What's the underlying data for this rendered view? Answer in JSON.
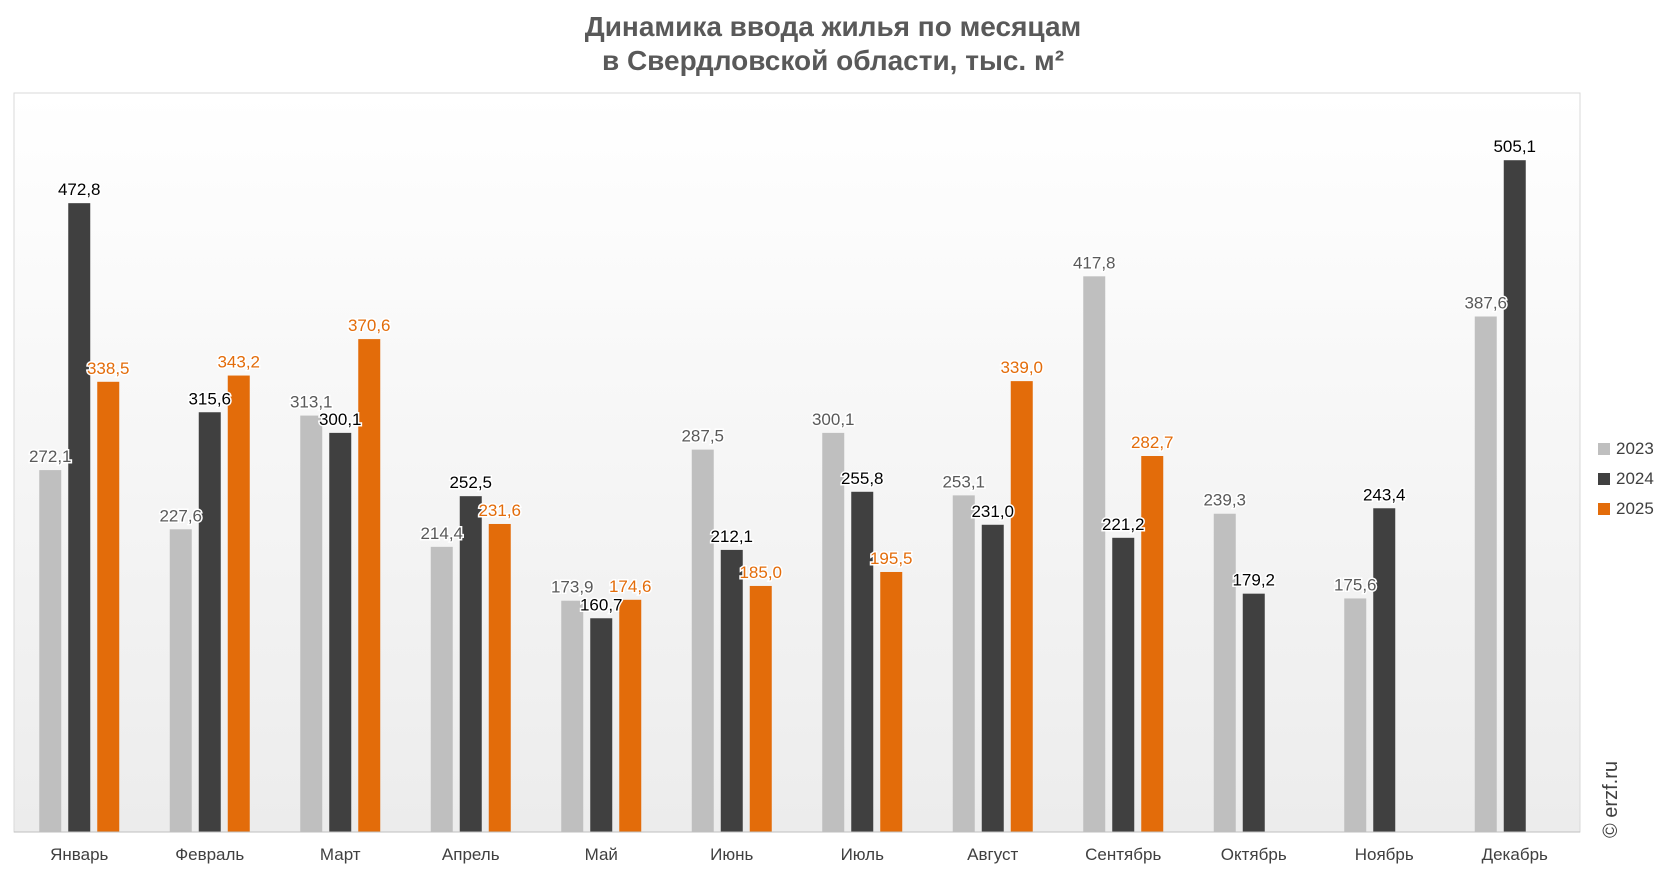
{
  "title": {
    "line1": "Динамика ввода жилья по месяцам",
    "line2": "в Свердловской области, тыс. м²"
  },
  "copyright": "© erzf.ru",
  "chart_data": {
    "type": "bar",
    "title": "Динамика ввода жилья по месяцам в Свердловской области, тыс. м²",
    "categories": [
      "Январь",
      "Февраль",
      "Март",
      "Апрель",
      "Май",
      "Июнь",
      "Июль",
      "Август",
      "Сентябрь",
      "Октябрь",
      "Ноябрь",
      "Декабрь"
    ],
    "series": [
      {
        "name": "2023",
        "color": "#bfbfbf",
        "label_color": "#595959",
        "values": [
          272.1,
          227.6,
          313.1,
          214.4,
          173.9,
          287.5,
          300.1,
          253.1,
          417.8,
          239.3,
          175.6,
          387.6
        ]
      },
      {
        "name": "2024",
        "color": "#404040",
        "label_color": "#000000",
        "values": [
          472.8,
          315.6,
          300.1,
          252.5,
          160.7,
          212.1,
          255.8,
          231.0,
          221.2,
          179.2,
          243.4,
          505.1
        ]
      },
      {
        "name": "2025",
        "color": "#e36c0a",
        "label_color": "#e36c0a",
        "values": [
          338.5,
          343.2,
          370.6,
          231.6,
          174.6,
          185.0,
          195.5,
          339.0,
          282.7,
          null,
          null,
          null
        ]
      }
    ],
    "ylim": [
      0,
      550
    ],
    "grid": false,
    "legend_position": "right",
    "decimal_separator": ","
  }
}
